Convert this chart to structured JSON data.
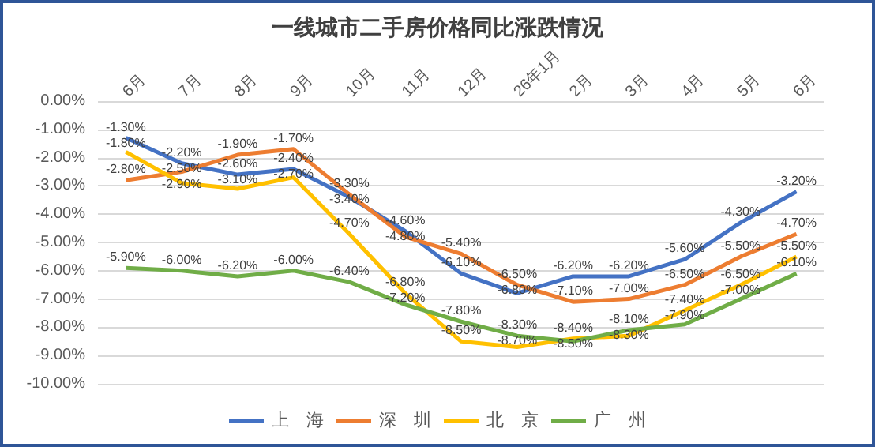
{
  "chart_data": {
    "type": "line",
    "title": "一线城市二手房价格同比涨跌情况",
    "categories": [
      "6月",
      "7月",
      "8月",
      "9月",
      "10月",
      "11月",
      "12月",
      "26年1月",
      "2月",
      "3月",
      "4月",
      "5月",
      "6月"
    ],
    "series": [
      {
        "name": "上　海",
        "color": "#4472c4",
        "values": [
          -1.3,
          -2.2,
          -2.6,
          -2.4,
          -3.4,
          -4.6,
          -6.1,
          -6.8,
          -6.2,
          -6.2,
          -5.6,
          -4.3,
          -3.2
        ],
        "value_labels": [
          "-1.30%",
          "-2.20%",
          "-2.60%",
          "-2.40%",
          "-3.40%",
          "-4.60%",
          "-6.10%",
          "-6.80%",
          "-6.20%",
          "-6.20%",
          "-5.60%",
          "-4.30%",
          "-3.20%"
        ]
      },
      {
        "name": "深　圳",
        "color": "#ed7d31",
        "values": [
          -2.8,
          -2.5,
          -1.9,
          -1.7,
          -3.3,
          -4.8,
          -5.4,
          -6.5,
          -7.1,
          -7.0,
          -6.5,
          -5.5,
          -4.7
        ],
        "value_labels": [
          "-2.80%",
          "-2.50%",
          "-1.90%",
          "-1.70%",
          "-3.30%",
          "-4.80%",
          "-5.40%",
          "-6.50%",
          "-7.10%",
          "-7.00%",
          "-6.50%",
          "-5.50%",
          "-4.70%"
        ]
      },
      {
        "name": "北　京",
        "color": "#ffc000",
        "values": [
          -1.8,
          -2.9,
          -3.1,
          -2.7,
          -4.7,
          -6.8,
          -8.5,
          -8.7,
          -8.4,
          -8.3,
          -7.4,
          -6.5,
          -5.5
        ],
        "value_labels": [
          "-1.80%",
          "-2.90%",
          "-3.10%",
          "-2.70%",
          "-4.70%",
          "-6.80%",
          "-8.50%",
          "-8.70%",
          "-8.40%",
          "-8.30%",
          "-7.40%",
          "-6.50%",
          "-5.50%"
        ]
      },
      {
        "name": "广　州",
        "color": "#70ad47",
        "values": [
          -5.9,
          -6.0,
          -6.2,
          -6.0,
          -6.4,
          -7.2,
          -7.8,
          -8.3,
          -8.5,
          -8.1,
          -7.9,
          -7.0,
          -6.1
        ],
        "value_labels": [
          "-5.90%",
          "-6.00%",
          "-6.20%",
          "-6.00%",
          "-6.40%",
          "-7.20%",
          "-7.80%",
          "-8.30%",
          "-8.50%",
          "-8.10%",
          "-7.90%",
          "-7.00%",
          "-6.10%"
        ]
      }
    ],
    "ylim": [
      -10,
      0
    ],
    "yticks": [
      {
        "value": -10,
        "label": "-10.00%"
      },
      {
        "value": -9,
        "label": "-9.00%"
      },
      {
        "value": -8,
        "label": "-8.00%"
      },
      {
        "value": -7,
        "label": "-7.00%"
      },
      {
        "value": -6,
        "label": "-6.00%"
      },
      {
        "value": -5,
        "label": "-5.00%"
      },
      {
        "value": -4,
        "label": "-4.00%"
      },
      {
        "value": -3,
        "label": "-3.00%"
      },
      {
        "value": -2,
        "label": "-2.00%"
      },
      {
        "value": -1,
        "label": "-1.00%"
      },
      {
        "value": 0,
        "label": "0.00%"
      }
    ],
    "grid": "y",
    "legend": "bottom",
    "marker": "none",
    "line_style": "solid"
  }
}
